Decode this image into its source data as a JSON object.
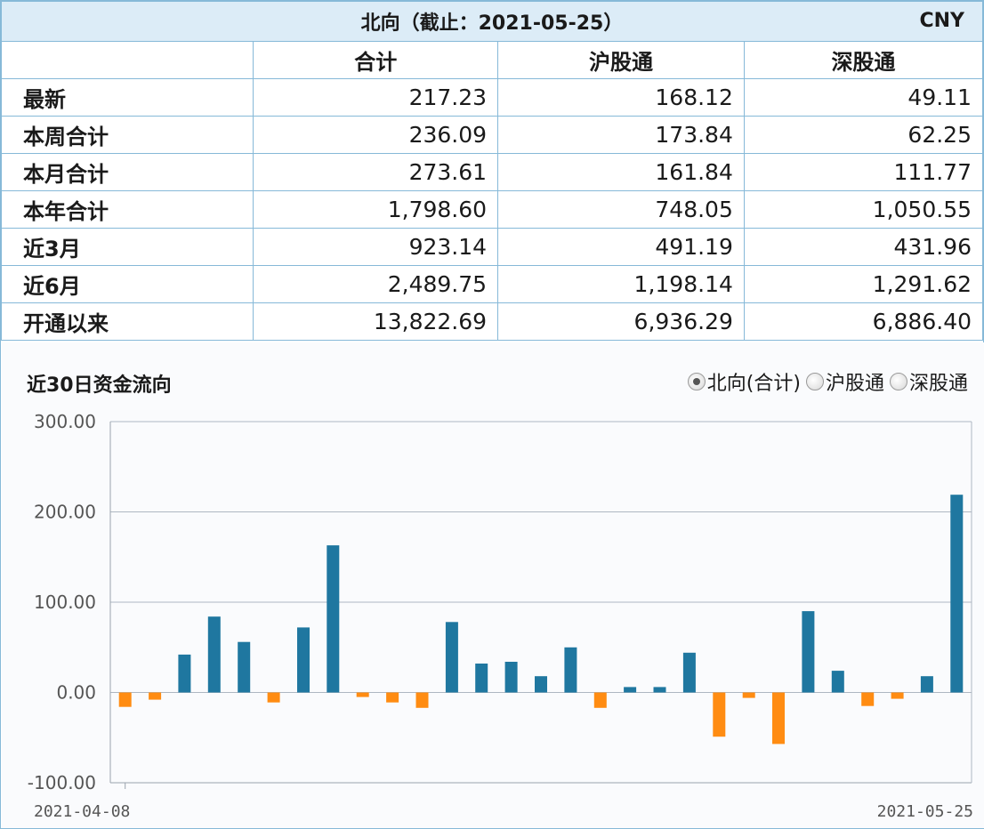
{
  "table": {
    "title": "北向（截止：2021-05-25）",
    "currency": "CNY",
    "columns": [
      "",
      "合计",
      "沪股通",
      "深股通"
    ],
    "rows": [
      {
        "label": "最新",
        "total": "217.23",
        "sh": "168.12",
        "sz": "49.11"
      },
      {
        "label": "本周合计",
        "total": "236.09",
        "sh": "173.84",
        "sz": "62.25"
      },
      {
        "label": "本月合计",
        "total": "273.61",
        "sh": "161.84",
        "sz": "111.77"
      },
      {
        "label": "本年合计",
        "total": "1,798.60",
        "sh": "748.05",
        "sz": "1,050.55"
      },
      {
        "label": "近3月",
        "total": "923.14",
        "sh": "491.19",
        "sz": "431.96"
      },
      {
        "label": "近6月",
        "total": "2,489.75",
        "sh": "1,198.14",
        "sz": "1,291.62"
      },
      {
        "label": "开通以来",
        "total": "13,822.69",
        "sh": "6,936.29",
        "sz": "6,886.40"
      }
    ]
  },
  "chart": {
    "title": "近30日资金流向",
    "legend": [
      {
        "label": "北向(合计)",
        "checked": true
      },
      {
        "label": "沪股通",
        "checked": false
      },
      {
        "label": "深股通",
        "checked": false
      }
    ]
  },
  "chart_data": {
    "type": "bar",
    "ylim": [
      -100,
      300
    ],
    "yticks": [
      "300.00",
      "200.00",
      "100.00",
      "0.00",
      "-100.00"
    ],
    "ytick_values": [
      300,
      200,
      100,
      0,
      -100
    ],
    "x_start_label": "2021-04-08",
    "x_end_label": "2021-05-25",
    "values": [
      -16,
      -8,
      42,
      84,
      56,
      -11,
      72,
      163,
      -5,
      -11,
      -17,
      78,
      32,
      34,
      18,
      50,
      -17,
      6,
      6,
      44,
      -49,
      -6,
      -57,
      90,
      24,
      -15,
      -7,
      18,
      219
    ],
    "colors": {
      "positive": "#1f77a0",
      "negative": "#ff8c12",
      "grid": "#aeb7c2",
      "axis": "#9aa3ad"
    },
    "grid": true
  }
}
